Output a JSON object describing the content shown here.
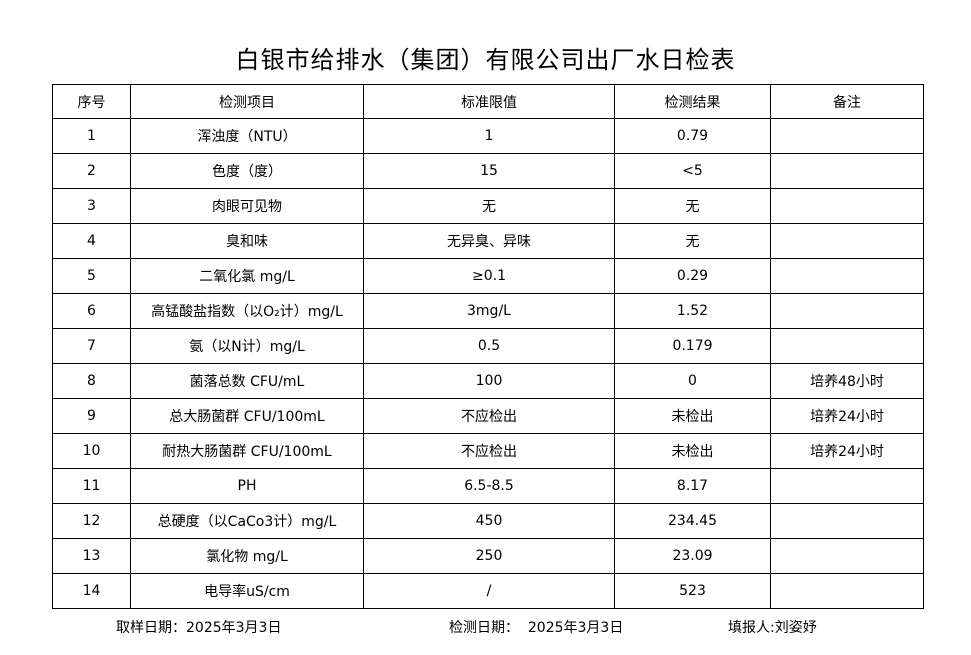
{
  "title": "白银市给排水（集团）有限公司出厂水日检表",
  "headers": [
    "序号",
    "检测项目",
    "标准限值",
    "检测结果",
    "备注"
  ],
  "rows": [
    [
      "1",
      "浑浊度（NTU）",
      "1",
      "0.79",
      ""
    ],
    [
      "2",
      "色度（度）",
      "15",
      "<5",
      ""
    ],
    [
      "3",
      "肉眼可见物",
      "无",
      "无",
      ""
    ],
    [
      "4",
      "臭和味",
      "无异臭、异味",
      "无",
      ""
    ],
    [
      "5",
      "二氧化氯 mg/L",
      "≥0.1",
      "0.29",
      ""
    ],
    [
      "6",
      "高锰酸盐指数（以O₂计）mg/L",
      "3mg/L",
      "1.52",
      ""
    ],
    [
      "7",
      "氨（以N计）mg/L",
      "0.5",
      "0.179",
      ""
    ],
    [
      "8",
      "菌落总数 CFU/mL",
      "100",
      "0",
      "培养48小时"
    ],
    [
      "9",
      "总大肠菌群 CFU/100mL",
      "不应检出",
      "未检出",
      "培养24小时"
    ],
    [
      "10",
      "耐热大肠菌群 CFU/100mL",
      "不应检出",
      "未检出",
      "培养24小时"
    ],
    [
      "11",
      "PH",
      "6.5-8.5",
      "8.17",
      ""
    ],
    [
      "12",
      "总硬度（以CaCo3计）mg/L",
      "450",
      "234.45",
      ""
    ],
    [
      "13",
      "氯化物 mg/L",
      "250",
      "23.09",
      ""
    ],
    [
      "14",
      "电导率uS/cm",
      "/",
      "523",
      ""
    ]
  ],
  "footer": {
    "sampling": "取样日期：2025年3月3日",
    "testing": "检测日期：  2025年3月3日",
    "reporter": "填报人:刘姿妤"
  }
}
